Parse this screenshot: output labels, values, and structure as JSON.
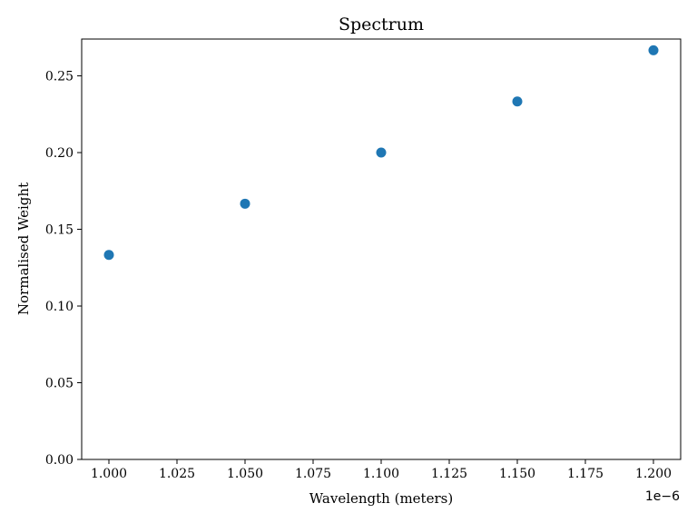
{
  "chart_data": {
    "type": "scatter",
    "title": "Spectrum",
    "xlabel": "Wavelength (meters)",
    "ylabel": "Normalised Weight",
    "x_offset_label": "1e−6",
    "x": [
      1.0,
      1.05,
      1.1,
      1.15,
      1.2
    ],
    "y": [
      0.1333,
      0.1667,
      0.2,
      0.2333,
      0.2667
    ],
    "xlim": [
      0.99,
      1.21
    ],
    "ylim": [
      0.0,
      0.274
    ],
    "xticks": [
      1.0,
      1.025,
      1.05,
      1.075,
      1.1,
      1.125,
      1.15,
      1.175,
      1.2
    ],
    "xtick_labels": [
      "1.000",
      "1.025",
      "1.050",
      "1.075",
      "1.100",
      "1.125",
      "1.150",
      "1.175",
      "1.200"
    ],
    "yticks": [
      0.0,
      0.05,
      0.1,
      0.15,
      0.2,
      0.25
    ],
    "ytick_labels": [
      "0.00",
      "0.05",
      "0.10",
      "0.15",
      "0.20",
      "0.25"
    ],
    "marker_color": "#1f77b4",
    "grid": false,
    "legend": false
  }
}
